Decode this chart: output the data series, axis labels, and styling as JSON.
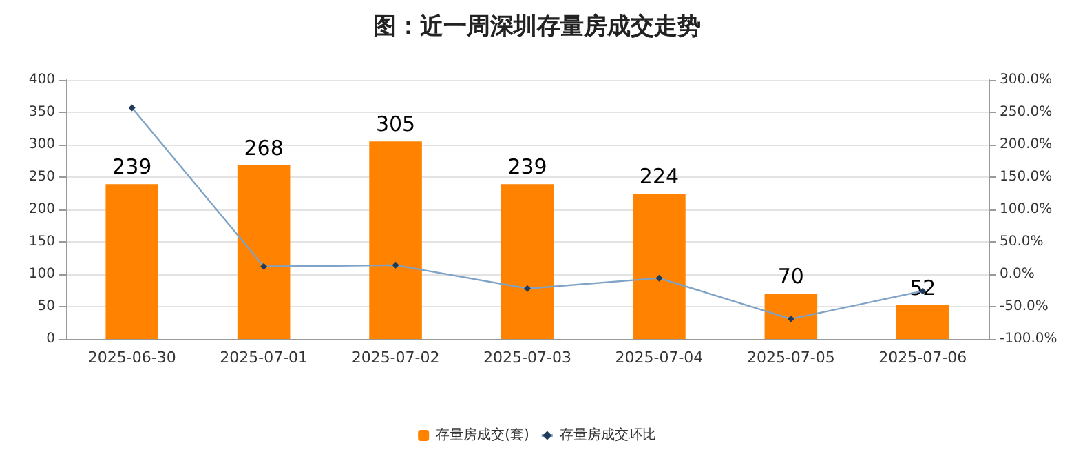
{
  "chart_data": {
    "type": "bar",
    "title": "图：近一周深圳存量房成交走势",
    "categories": [
      "2025-06-30",
      "2025-07-01",
      "2025-07-02",
      "2025-07-03",
      "2025-07-04",
      "2025-07-05",
      "2025-07-06"
    ],
    "series": [
      {
        "name": "存量房成交(套)",
        "color": "#ff8200",
        "values": [
          239,
          268,
          305,
          239,
          224,
          70,
          52
        ],
        "data_labels": true
      },
      {
        "name": "存量房成交环比",
        "type": "line",
        "axis": "y2",
        "color": "#7fa3c7",
        "marker": "diamond",
        "values": [
          257,
          12,
          14,
          -22,
          -6,
          -69,
          -26
        ]
      }
    ],
    "ylim": [
      0,
      400
    ],
    "yticks": [
      0,
      50,
      100,
      150,
      200,
      250,
      300,
      350,
      400
    ],
    "y2lim": [
      -100,
      300
    ],
    "y2ticks": [
      {
        "value": -100,
        "label": "-100.0%"
      },
      {
        "value": -50,
        "label": "-50.0%"
      },
      {
        "value": 0,
        "label": "0.0%"
      },
      {
        "value": 50,
        "label": "50.0%"
      },
      {
        "value": 100,
        "label": "100.0%"
      },
      {
        "value": 150,
        "label": "150.0%"
      },
      {
        "value": 200,
        "label": "200.0%"
      },
      {
        "value": 250,
        "label": "250.0%"
      },
      {
        "value": 300,
        "label": "300.0%"
      }
    ],
    "grid": "y",
    "legend": "bottom"
  }
}
